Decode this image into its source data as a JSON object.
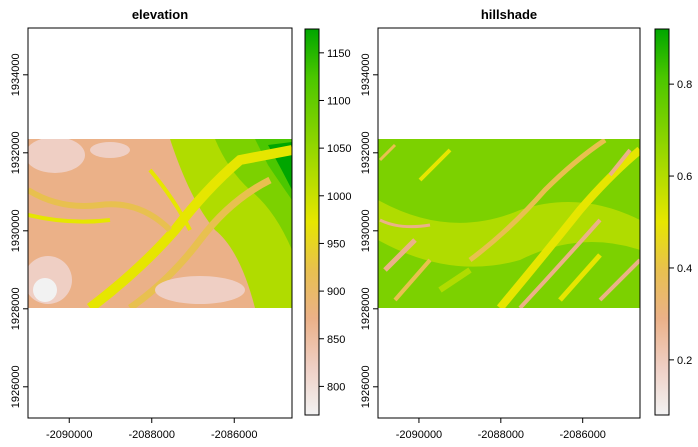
{
  "chart_data": [
    {
      "type": "heatmap",
      "title": "elevation",
      "xlabel": "",
      "ylabel": "",
      "xlim": [
        -2091000,
        -2084600
      ],
      "ylim": [
        1925200,
        1935200
      ],
      "raster_extent": {
        "x": [
          -2091000,
          -2084600
        ],
        "y": [
          1928000,
          1932000
        ]
      },
      "x_ticks": [
        -2090000,
        -2088000,
        -2086000
      ],
      "x_tick_labels": [
        "-2090000",
        "-2088000",
        "-2086000"
      ],
      "y_ticks": [
        1926000,
        1928000,
        1930000,
        1932000,
        1934000
      ],
      "y_tick_labels": [
        "1926000",
        "1928000",
        "1930000",
        "1932000",
        "1934000"
      ],
      "legend": {
        "position": "right",
        "range": [
          770,
          1175
        ],
        "ticks": [
          800,
          850,
          900,
          950,
          1000,
          1050,
          1100,
          1150
        ],
        "tick_labels": [
          "800",
          "850",
          "900",
          "950",
          "1000",
          "1050",
          "1100",
          "1150"
        ]
      },
      "colors": [
        "#F2F2F2",
        "#EFCFC4",
        "#EBB188",
        "#E8C04F",
        "#E6E600",
        "#B0DC00",
        "#7CD100",
        "#4BC700",
        "#00A600"
      ]
    },
    {
      "type": "heatmap",
      "title": "hillshade",
      "xlabel": "",
      "ylabel": "",
      "xlim": [
        -2091000,
        -2084600
      ],
      "ylim": [
        1925200,
        1935200
      ],
      "raster_extent": {
        "x": [
          -2091000,
          -2084600
        ],
        "y": [
          1928000,
          1932000
        ]
      },
      "x_ticks": [
        -2090000,
        -2088000,
        -2086000
      ],
      "x_tick_labels": [
        "-2090000",
        "-2088000",
        "-2086000"
      ],
      "y_ticks": [
        1926000,
        1928000,
        1930000,
        1932000,
        1934000
      ],
      "y_tick_labels": [
        "1926000",
        "1928000",
        "1930000",
        "1932000",
        "1934000"
      ],
      "legend": {
        "position": "right",
        "range": [
          0.08,
          0.92
        ],
        "ticks": [
          0.2,
          0.4,
          0.6,
          0.8
        ],
        "tick_labels": [
          "0.2",
          "0.4",
          "0.6",
          "0.8"
        ]
      },
      "colors": [
        "#F2F2F2",
        "#EFCFC4",
        "#EBB188",
        "#E8C04F",
        "#E6E600",
        "#B0DC00",
        "#7CD100",
        "#4BC700",
        "#00A600"
      ]
    }
  ]
}
